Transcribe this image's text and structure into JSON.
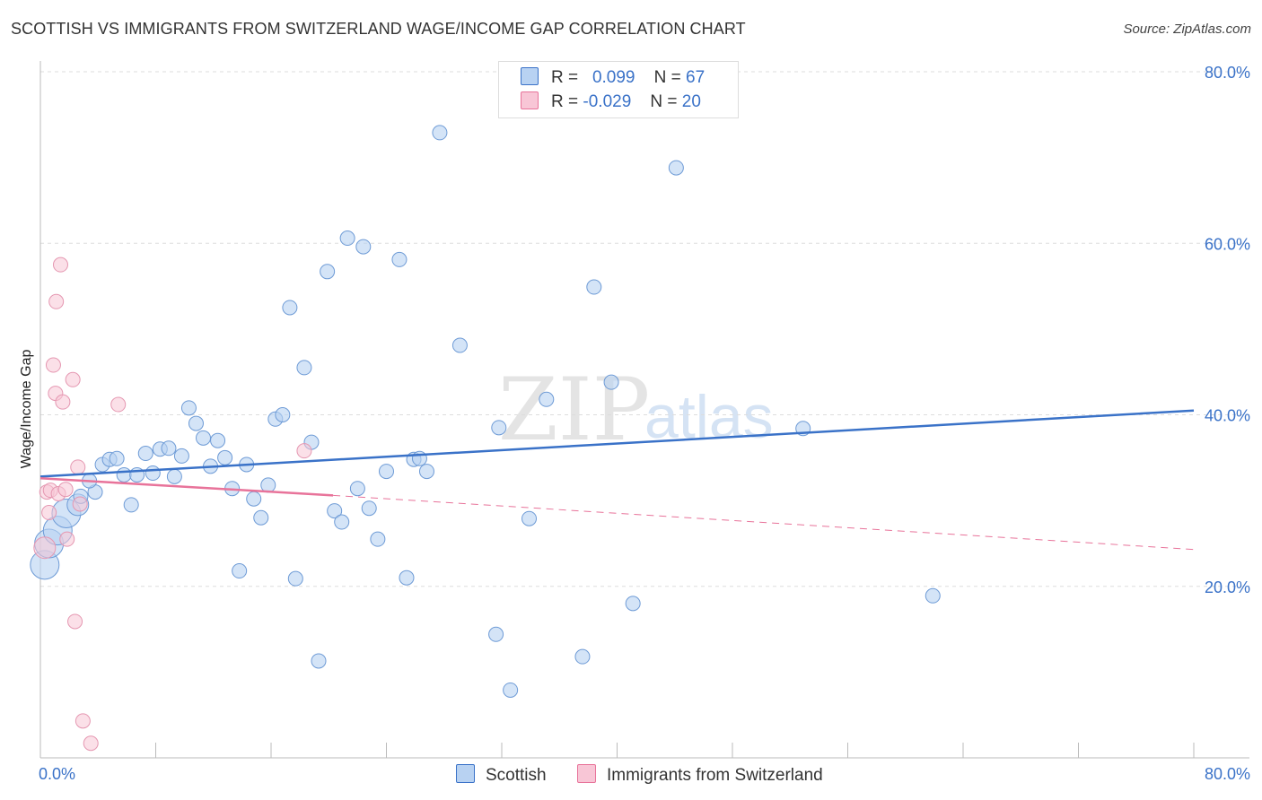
{
  "title": "SCOTTISH VS IMMIGRANTS FROM SWITZERLAND WAGE/INCOME GAP CORRELATION CHART",
  "source": "Source: ZipAtlas.com",
  "watermark": {
    "zip": "ZIP",
    "atlas": "atlas"
  },
  "legend": {
    "r_label": "R =",
    "n_label": "N =",
    "scottish": {
      "r": "0.099",
      "n": "67"
    },
    "swiss": {
      "r": "-0.029",
      "n": "20"
    }
  },
  "bottom_legend": {
    "scottish": "Scottish",
    "swiss": "Immigrants from Switzerland"
  },
  "colors": {
    "blue": "#3a72c8",
    "blue_fill": "#b8d2f2",
    "pink": "#e8739a",
    "pink_fill": "#f8c6d6"
  },
  "chart_data": {
    "type": "scatter",
    "title": "SCOTTISH VS IMMIGRANTS FROM SWITZERLAND WAGE/INCOME GAP CORRELATION CHART",
    "xlabel": "",
    "ylabel": "Wage/Income Gap",
    "xlim": [
      0,
      80
    ],
    "ylim": [
      0,
      80
    ],
    "x_tick_labels": [
      "0.0%",
      "80.0%"
    ],
    "y_ticks": [
      20,
      40,
      60,
      80
    ],
    "y_tick_labels": [
      "20.0%",
      "40.0%",
      "60.0%",
      "80.0%"
    ],
    "grid": true,
    "series": [
      {
        "name": "Scottish",
        "trend": {
          "x0": 0,
          "y0": 32.8,
          "x1": 80,
          "y1": 40.5
        },
        "points": [
          {
            "x": 0.3,
            "y": 22.5,
            "s": 3
          },
          {
            "x": 0.6,
            "y": 25.0,
            "s": 3
          },
          {
            "x": 1.2,
            "y": 26.5,
            "s": 3
          },
          {
            "x": 1.8,
            "y": 28.5,
            "s": 3
          },
          {
            "x": 2.6,
            "y": 29.5,
            "s": 2
          },
          {
            "x": 2.8,
            "y": 30.5,
            "s": 1
          },
          {
            "x": 3.8,
            "y": 31.0,
            "s": 1
          },
          {
            "x": 3.4,
            "y": 32.3,
            "s": 1
          },
          {
            "x": 4.3,
            "y": 34.2,
            "s": 1
          },
          {
            "x": 4.8,
            "y": 34.8,
            "s": 1
          },
          {
            "x": 5.3,
            "y": 34.9,
            "s": 1
          },
          {
            "x": 5.8,
            "y": 33.0,
            "s": 1
          },
          {
            "x": 6.3,
            "y": 29.5,
            "s": 1
          },
          {
            "x": 6.7,
            "y": 33.0,
            "s": 1
          },
          {
            "x": 7.3,
            "y": 35.5,
            "s": 1
          },
          {
            "x": 7.8,
            "y": 33.2,
            "s": 1
          },
          {
            "x": 8.3,
            "y": 36.0,
            "s": 1
          },
          {
            "x": 8.9,
            "y": 36.1,
            "s": 1
          },
          {
            "x": 9.3,
            "y": 32.8,
            "s": 1
          },
          {
            "x": 9.8,
            "y": 35.2,
            "s": 1
          },
          {
            "x": 10.3,
            "y": 40.8,
            "s": 1
          },
          {
            "x": 10.8,
            "y": 39.0,
            "s": 1
          },
          {
            "x": 11.3,
            "y": 37.3,
            "s": 1
          },
          {
            "x": 11.8,
            "y": 34.0,
            "s": 1
          },
          {
            "x": 12.3,
            "y": 37.0,
            "s": 1
          },
          {
            "x": 12.8,
            "y": 35.0,
            "s": 1
          },
          {
            "x": 13.3,
            "y": 31.4,
            "s": 1
          },
          {
            "x": 13.8,
            "y": 21.8,
            "s": 1
          },
          {
            "x": 14.3,
            "y": 34.2,
            "s": 1
          },
          {
            "x": 14.8,
            "y": 30.2,
            "s": 1
          },
          {
            "x": 15.3,
            "y": 28.0,
            "s": 1
          },
          {
            "x": 15.8,
            "y": 31.8,
            "s": 1
          },
          {
            "x": 16.3,
            "y": 39.5,
            "s": 1
          },
          {
            "x": 16.8,
            "y": 40.0,
            "s": 1
          },
          {
            "x": 17.3,
            "y": 52.5,
            "s": 1
          },
          {
            "x": 17.7,
            "y": 20.9,
            "s": 1
          },
          {
            "x": 18.3,
            "y": 45.5,
            "s": 1
          },
          {
            "x": 18.8,
            "y": 36.8,
            "s": 1
          },
          {
            "x": 19.3,
            "y": 11.3,
            "s": 1
          },
          {
            "x": 19.9,
            "y": 56.7,
            "s": 1
          },
          {
            "x": 20.4,
            "y": 28.8,
            "s": 1
          },
          {
            "x": 20.9,
            "y": 27.5,
            "s": 1
          },
          {
            "x": 21.3,
            "y": 60.6,
            "s": 1
          },
          {
            "x": 22.0,
            "y": 31.4,
            "s": 1
          },
          {
            "x": 22.4,
            "y": 59.6,
            "s": 1
          },
          {
            "x": 22.8,
            "y": 29.1,
            "s": 1
          },
          {
            "x": 23.4,
            "y": 25.5,
            "s": 1
          },
          {
            "x": 24.0,
            "y": 33.4,
            "s": 1
          },
          {
            "x": 24.9,
            "y": 58.1,
            "s": 1
          },
          {
            "x": 25.4,
            "y": 21.0,
            "s": 1
          },
          {
            "x": 25.9,
            "y": 34.8,
            "s": 1
          },
          {
            "x": 26.3,
            "y": 34.9,
            "s": 1
          },
          {
            "x": 26.8,
            "y": 33.4,
            "s": 1
          },
          {
            "x": 27.7,
            "y": 72.9,
            "s": 1
          },
          {
            "x": 29.1,
            "y": 48.1,
            "s": 1
          },
          {
            "x": 31.6,
            "y": 14.4,
            "s": 1
          },
          {
            "x": 31.8,
            "y": 38.5,
            "s": 1
          },
          {
            "x": 32.6,
            "y": 7.9,
            "s": 1
          },
          {
            "x": 33.9,
            "y": 27.9,
            "s": 1
          },
          {
            "x": 35.1,
            "y": 41.8,
            "s": 1
          },
          {
            "x": 37.6,
            "y": 11.8,
            "s": 1
          },
          {
            "x": 38.4,
            "y": 54.9,
            "s": 1
          },
          {
            "x": 39.6,
            "y": 43.8,
            "s": 1
          },
          {
            "x": 41.1,
            "y": 18.0,
            "s": 1
          },
          {
            "x": 44.1,
            "y": 68.8,
            "s": 1
          },
          {
            "x": 52.9,
            "y": 38.4,
            "s": 1
          },
          {
            "x": 61.9,
            "y": 18.9,
            "s": 1
          }
        ]
      },
      {
        "name": "Immigrants from Switzerland",
        "trend": {
          "x0": 0,
          "y0": 32.6,
          "x1": 20.3,
          "y1": 30.6,
          "dash_x1": 80,
          "dash_y1": 24.3
        },
        "points": [
          {
            "x": 0.3,
            "y": 24.5,
            "s": 2
          },
          {
            "x": 0.45,
            "y": 31.0,
            "s": 1
          },
          {
            "x": 0.6,
            "y": 28.6,
            "s": 1
          },
          {
            "x": 0.7,
            "y": 31.2,
            "s": 1
          },
          {
            "x": 0.9,
            "y": 45.8,
            "s": 1
          },
          {
            "x": 1.05,
            "y": 42.5,
            "s": 1
          },
          {
            "x": 1.1,
            "y": 53.2,
            "s": 1
          },
          {
            "x": 1.25,
            "y": 30.8,
            "s": 1
          },
          {
            "x": 1.4,
            "y": 57.5,
            "s": 1
          },
          {
            "x": 1.55,
            "y": 41.5,
            "s": 1
          },
          {
            "x": 1.75,
            "y": 31.3,
            "s": 1
          },
          {
            "x": 1.85,
            "y": 25.5,
            "s": 1
          },
          {
            "x": 2.25,
            "y": 44.1,
            "s": 1
          },
          {
            "x": 2.4,
            "y": 15.9,
            "s": 1
          },
          {
            "x": 2.6,
            "y": 33.9,
            "s": 1
          },
          {
            "x": 2.75,
            "y": 29.6,
            "s": 1
          },
          {
            "x": 2.95,
            "y": 4.3,
            "s": 1
          },
          {
            "x": 3.5,
            "y": 1.7,
            "s": 1
          },
          {
            "x": 5.4,
            "y": 41.2,
            "s": 1
          },
          {
            "x": 18.3,
            "y": 35.8,
            "s": 1
          }
        ]
      }
    ]
  }
}
